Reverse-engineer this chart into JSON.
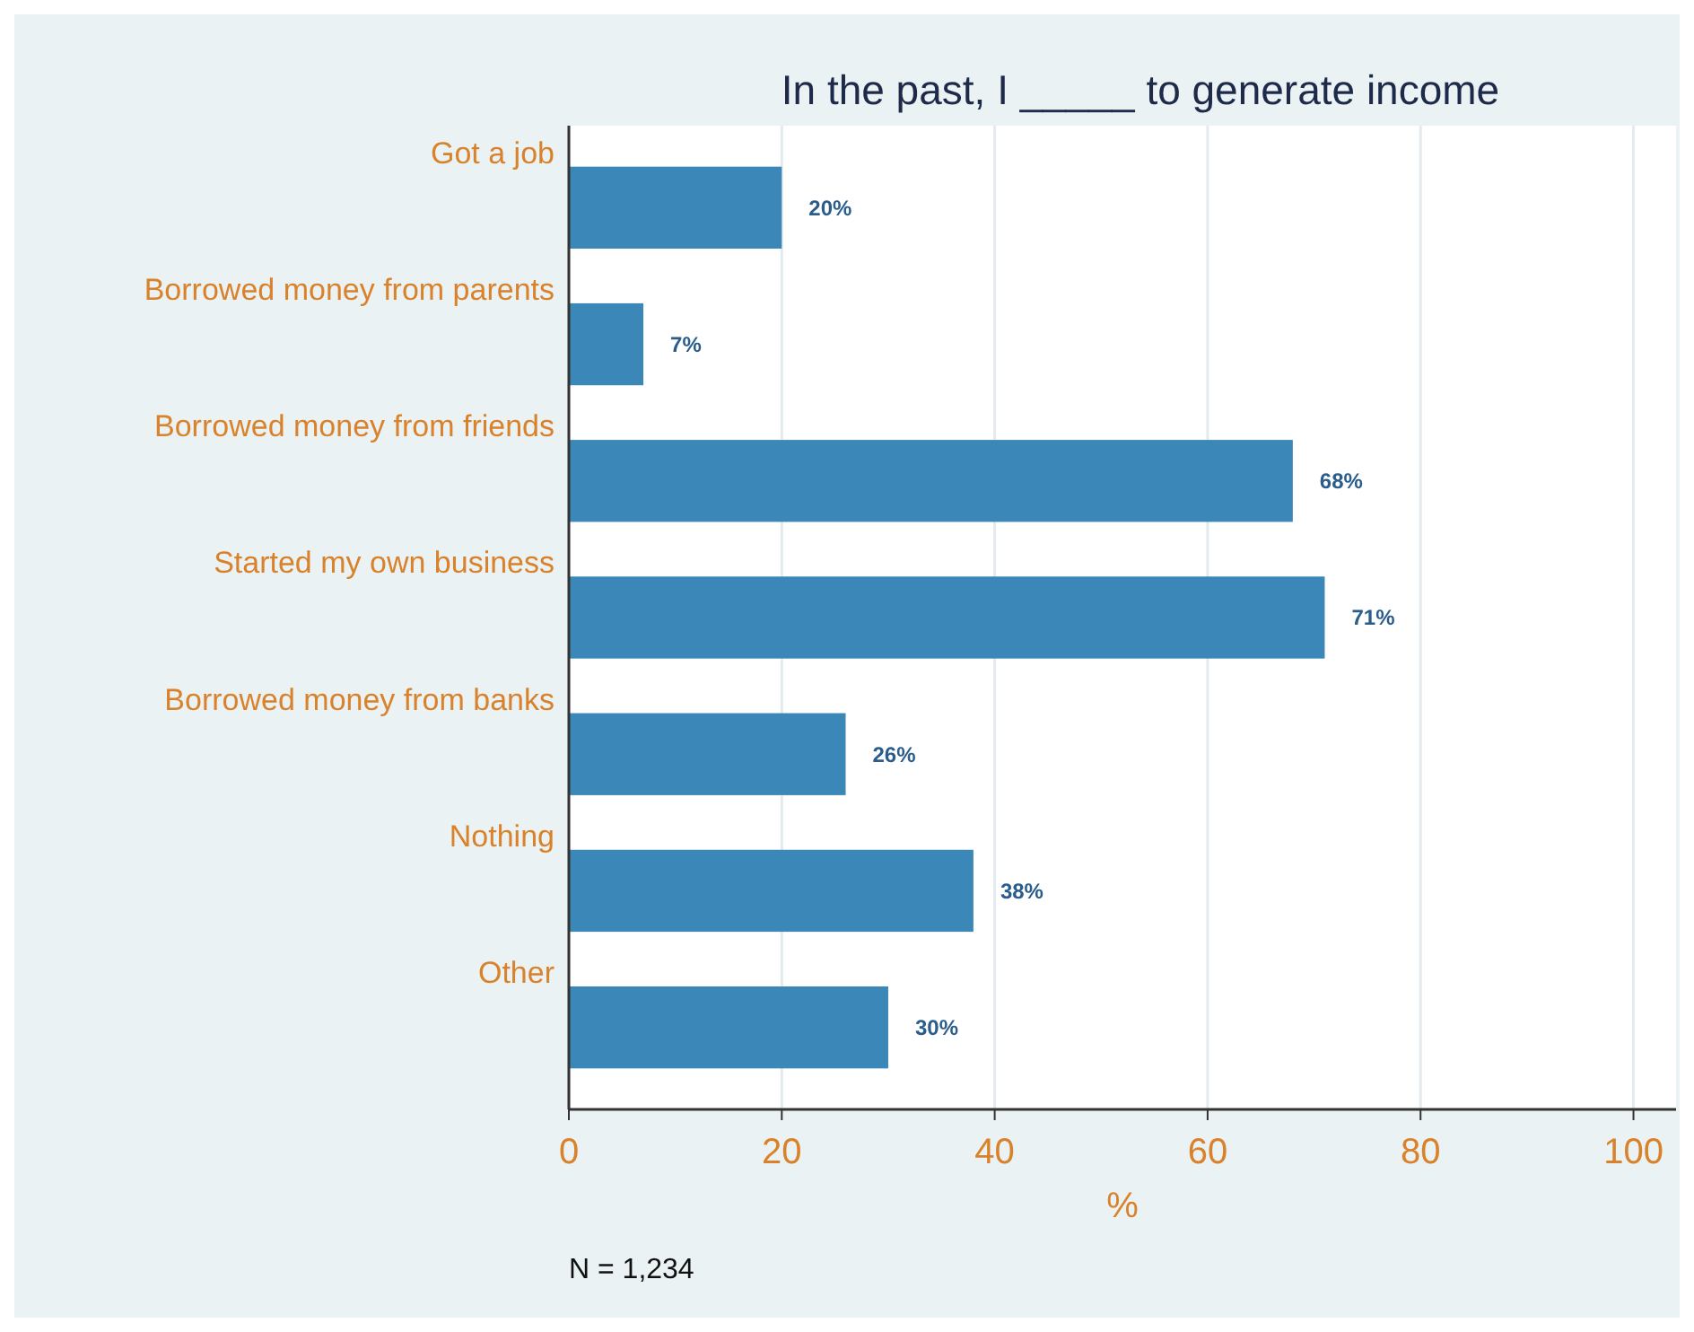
{
  "chart_data": {
    "type": "bar",
    "orientation": "horizontal",
    "title": "In the past, I _____ to generate income",
    "xlabel": "%",
    "categories": [
      "Got a job",
      "Borrowed money from parents",
      "Borrowed money from friends",
      "Started my own business",
      "Borrowed money from banks",
      "Nothing",
      "Other"
    ],
    "values": [
      20,
      7,
      68,
      71,
      26,
      38,
      30
    ],
    "value_labels": [
      "20%",
      "7%",
      "68%",
      "71%",
      "26%",
      "38%",
      "30%"
    ],
    "color": "#3a87b8",
    "xlim": [
      0,
      104
    ],
    "xticks": [
      0,
      20,
      40,
      60,
      80,
      100
    ],
    "grid": "x",
    "annotations": [
      "N = 1,234"
    ]
  }
}
